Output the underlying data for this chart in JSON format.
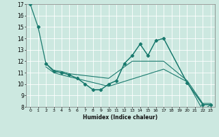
{
  "title": "",
  "xlabel": "Humidex (Indice chaleur)",
  "background_color": "#cce8e0",
  "grid_color": "#ffffff",
  "line_color": "#1a7a6e",
  "xmin": -0.5,
  "xmax": 23.5,
  "ymin": 8,
  "ymax": 17,
  "yticks": [
    8,
    9,
    10,
    11,
    12,
    13,
    14,
    15,
    16,
    17
  ],
  "xticks": [
    0,
    1,
    2,
    3,
    4,
    5,
    6,
    7,
    8,
    9,
    10,
    11,
    12,
    13,
    14,
    15,
    16,
    17,
    18,
    19,
    20,
    21,
    22,
    23
  ],
  "line1_x": [
    0,
    1,
    2,
    3,
    4,
    5,
    6,
    7,
    8,
    9,
    10,
    11,
    12,
    13,
    14,
    15,
    16,
    17,
    20,
    22,
    23
  ],
  "line1_y": [
    17.0,
    15.0,
    11.8,
    11.1,
    11.0,
    10.8,
    10.5,
    10.0,
    9.5,
    9.5,
    10.0,
    10.3,
    11.8,
    12.5,
    13.5,
    12.5,
    13.8,
    14.0,
    10.1,
    8.2,
    8.2
  ],
  "line2_x": [
    2,
    3,
    4,
    5,
    10,
    13,
    15,
    17,
    20,
    22,
    23
  ],
  "line2_y": [
    11.8,
    11.2,
    11.1,
    10.9,
    10.5,
    12.0,
    12.0,
    12.0,
    10.3,
    8.3,
    8.3
  ],
  "line3_x": [
    2,
    3,
    4,
    10,
    17,
    20,
    22,
    23
  ],
  "line3_y": [
    11.5,
    11.0,
    10.8,
    9.8,
    11.3,
    10.2,
    7.7,
    8.2
  ],
  "line4_x": [
    2,
    3,
    4,
    5,
    6,
    7,
    8,
    9,
    10,
    11,
    12,
    13,
    14,
    15,
    16,
    17,
    20,
    22,
    23
  ],
  "line4_y": [
    11.8,
    11.1,
    11.0,
    10.8,
    10.5,
    10.0,
    9.5,
    9.5,
    10.0,
    10.3,
    11.8,
    12.5,
    13.5,
    12.5,
    13.8,
    14.0,
    10.1,
    8.2,
    8.2
  ]
}
